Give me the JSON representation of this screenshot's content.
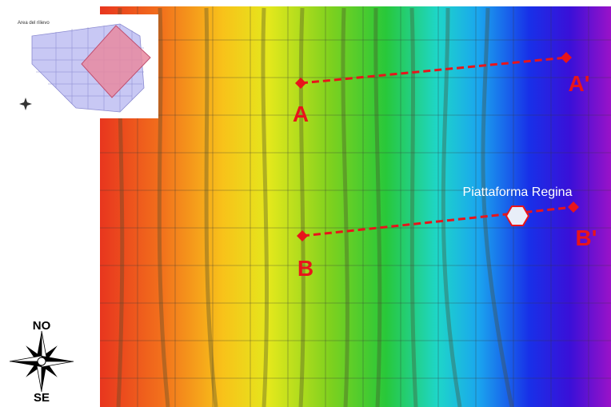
{
  "map": {
    "inset_title": "Area del rilievo",
    "sections": [
      {
        "start": "A",
        "end": "A'"
      },
      {
        "start": "B",
        "end": "B'"
      }
    ],
    "platform": "Piattaforma Regina",
    "compass": {
      "north": "NO",
      "south": "SE"
    }
  }
}
